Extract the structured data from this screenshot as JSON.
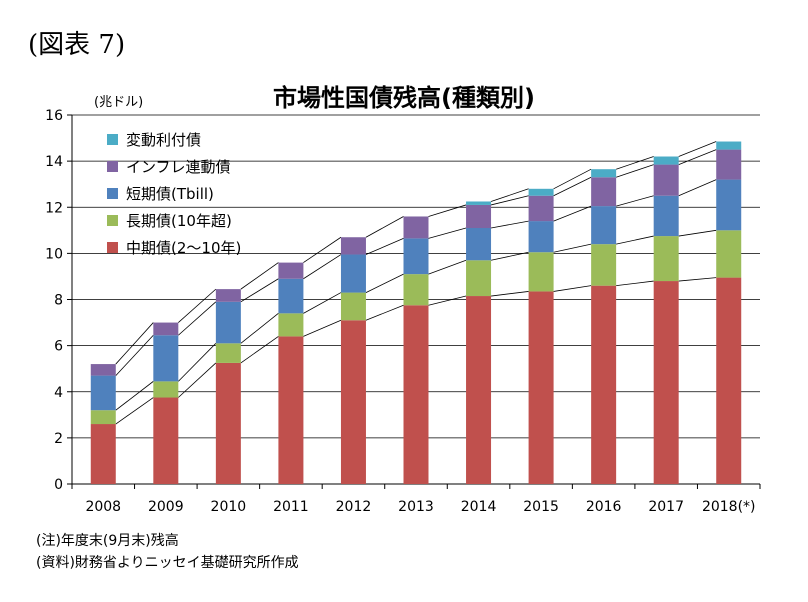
{
  "figure_label": "(図表 7)",
  "notes": [
    "(注)年度末(9月末)残高",
    "(資料)財務省よりニッセイ基礎研究所作成"
  ],
  "chart_data": {
    "type": "bar",
    "stacked": true,
    "title": "市場性国債残高(種類別)",
    "ylabel": "(兆ドル)",
    "xlabel": "",
    "ylim": [
      0,
      16
    ],
    "yticks": [
      0,
      2,
      4,
      6,
      8,
      10,
      12,
      14,
      16
    ],
    "grid": true,
    "legend_position": "top-left",
    "categories": [
      "2008",
      "2009",
      "2010",
      "2011",
      "2012",
      "2013",
      "2014",
      "2015",
      "2016",
      "2017",
      "2018(*)"
    ],
    "series": [
      {
        "name": "中期債(2〜10年)",
        "color": "#c0504d",
        "values": [
          2.6,
          3.75,
          5.25,
          6.4,
          7.1,
          7.75,
          8.15,
          8.35,
          8.6,
          8.8,
          8.95
        ]
      },
      {
        "name": "長期債(10年超)",
        "color": "#9bbb59",
        "values": [
          0.6,
          0.7,
          0.85,
          1.0,
          1.2,
          1.35,
          1.55,
          1.7,
          1.8,
          1.95,
          2.05
        ]
      },
      {
        "name": "短期債(Tbill)",
        "color": "#4f81bd",
        "values": [
          1.5,
          2.0,
          1.8,
          1.5,
          1.65,
          1.55,
          1.4,
          1.35,
          1.65,
          1.75,
          2.2
        ]
      },
      {
        "name": "インフレ連動債",
        "color": "#8064a2",
        "values": [
          0.5,
          0.55,
          0.55,
          0.7,
          0.75,
          0.95,
          1.0,
          1.1,
          1.25,
          1.35,
          1.3
        ]
      },
      {
        "name": "変動利付債",
        "color": "#4bacc6",
        "values": [
          0.0,
          0.0,
          0.0,
          0.0,
          0.0,
          0.0,
          0.15,
          0.3,
          0.35,
          0.35,
          0.35
        ]
      }
    ]
  }
}
